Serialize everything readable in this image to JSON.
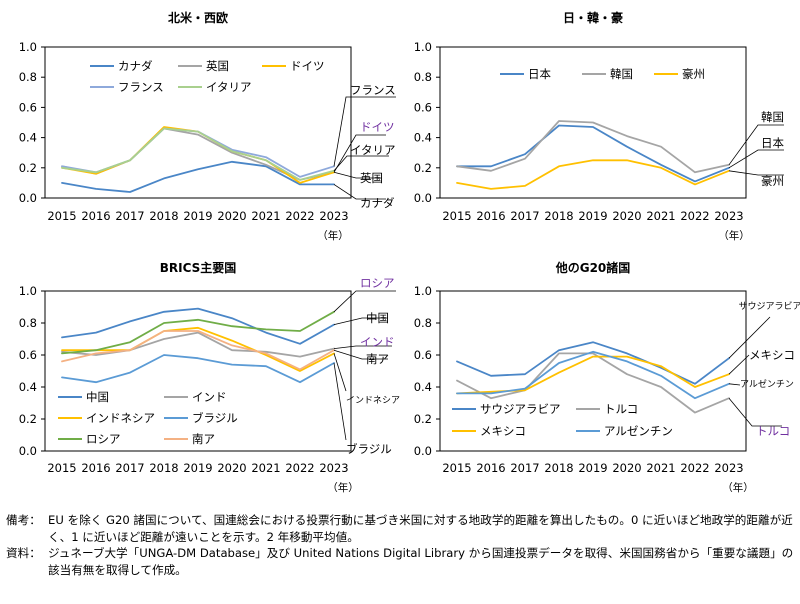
{
  "figure": {
    "year_unit": "（年）"
  },
  "chart_data": [
    {
      "type": "line",
      "title": "北米・西欧",
      "categories": [
        "2015",
        "2016",
        "2017",
        "2018",
        "2019",
        "2020",
        "2021",
        "2022",
        "2023"
      ],
      "ylim": [
        0,
        1.0
      ],
      "yticks": [
        "0.0",
        "0.2",
        "0.4",
        "0.6",
        "0.8",
        "1.0"
      ],
      "series": [
        {
          "name": "カナダ",
          "color": "#4a86c7",
          "values": [
            0.1,
            0.06,
            0.04,
            0.13,
            0.19,
            0.24,
            0.21,
            0.09,
            0.09
          ]
        },
        {
          "name": "英国",
          "color": "#a5a5a5",
          "values": [
            0.21,
            0.16,
            0.25,
            0.46,
            0.42,
            0.3,
            0.22,
            0.12,
            0.17
          ]
        },
        {
          "name": "ドイツ",
          "color": "#ffc000",
          "values": [
            0.2,
            0.16,
            0.25,
            0.47,
            0.44,
            0.31,
            0.25,
            0.1,
            0.17
          ]
        },
        {
          "name": "フランス",
          "color": "#8ea9db",
          "values": [
            0.21,
            0.17,
            0.25,
            0.46,
            0.44,
            0.32,
            0.27,
            0.14,
            0.21
          ]
        },
        {
          "name": "イタリア",
          "color": "#a9d08e",
          "values": [
            0.2,
            0.17,
            0.25,
            0.46,
            0.44,
            0.31,
            0.25,
            0.12,
            0.18
          ]
        }
      ],
      "end_labels": [
        {
          "series": "フランス",
          "text": "フランス",
          "color": "#000000"
        },
        {
          "series": "ドイツ",
          "text": "ドイツ",
          "color": "#7030a0"
        },
        {
          "series": "イタリア",
          "text": "イタリア",
          "color": "#000000"
        },
        {
          "series": "英国",
          "text": "英国",
          "color": "#000000"
        },
        {
          "series": "カナダ",
          "text": "カナダ",
          "color": "#000000"
        }
      ]
    },
    {
      "type": "line",
      "title": "日・韓・豪",
      "categories": [
        "2015",
        "2016",
        "2017",
        "2018",
        "2019",
        "2020",
        "2021",
        "2022",
        "2023"
      ],
      "ylim": [
        0,
        1.0
      ],
      "yticks": [
        "0.0",
        "0.2",
        "0.4",
        "0.6",
        "0.8",
        "1.0"
      ],
      "series": [
        {
          "name": "日本",
          "color": "#4a86c7",
          "values": [
            0.21,
            0.21,
            0.29,
            0.48,
            0.47,
            0.34,
            0.22,
            0.11,
            0.2
          ]
        },
        {
          "name": "韓国",
          "color": "#a5a5a5",
          "values": [
            0.21,
            0.18,
            0.26,
            0.51,
            0.5,
            0.41,
            0.34,
            0.17,
            0.22
          ]
        },
        {
          "name": "豪州",
          "color": "#ffc000",
          "values": [
            0.1,
            0.06,
            0.08,
            0.21,
            0.25,
            0.25,
            0.2,
            0.09,
            0.18
          ]
        }
      ],
      "end_labels": [
        {
          "series": "韓国",
          "text": "韓国",
          "color": "#000000"
        },
        {
          "series": "日本",
          "text": "日本",
          "color": "#000000"
        },
        {
          "series": "豪州",
          "text": "豪州",
          "color": "#000000"
        }
      ]
    },
    {
      "type": "line",
      "title": "BRICS主要国",
      "categories": [
        "2015",
        "2016",
        "2017",
        "2018",
        "2019",
        "2020",
        "2021",
        "2022",
        "2023"
      ],
      "ylim": [
        0,
        1.0
      ],
      "yticks": [
        "0.0",
        "0.2",
        "0.4",
        "0.6",
        "0.8",
        "1.0"
      ],
      "series": [
        {
          "name": "中国",
          "color": "#4a86c7",
          "values": [
            0.71,
            0.74,
            0.81,
            0.87,
            0.89,
            0.83,
            0.74,
            0.67,
            0.79
          ]
        },
        {
          "name": "インド",
          "color": "#a5a5a5",
          "values": [
            0.62,
            0.6,
            0.63,
            0.7,
            0.74,
            0.63,
            0.62,
            0.59,
            0.64
          ]
        },
        {
          "name": "インドネシア",
          "color": "#ffc000",
          "values": [
            0.63,
            0.63,
            0.63,
            0.75,
            0.77,
            0.69,
            0.6,
            0.5,
            0.61
          ]
        },
        {
          "name": "ブラジル",
          "color": "#5b9bd5",
          "values": [
            0.46,
            0.43,
            0.49,
            0.6,
            0.58,
            0.54,
            0.53,
            0.43,
            0.55
          ]
        },
        {
          "name": "ロシア",
          "color": "#70ad47",
          "values": [
            0.61,
            0.63,
            0.68,
            0.8,
            0.82,
            0.78,
            0.76,
            0.75,
            0.87
          ]
        },
        {
          "name": "南ア",
          "color": "#f4b183",
          "values": [
            0.56,
            0.61,
            0.63,
            0.75,
            0.75,
            0.66,
            0.61,
            0.51,
            0.63
          ]
        }
      ],
      "end_labels": [
        {
          "series": "ロシア",
          "text": "ロシア",
          "color": "#7030a0"
        },
        {
          "series": "中国",
          "text": "中国",
          "color": "#000000"
        },
        {
          "series": "インド",
          "text": "インド",
          "color": "#7030a0"
        },
        {
          "series": "南ア",
          "text": "南ア",
          "color": "#000000"
        },
        {
          "series": "インドネシア",
          "text": "インドネシア",
          "color": "#000000"
        },
        {
          "series": "ブラジル",
          "text": "ブラジル",
          "color": "#000000"
        }
      ]
    },
    {
      "type": "line",
      "title": "他のG20諸国",
      "categories": [
        "2015",
        "2016",
        "2017",
        "2018",
        "2019",
        "2020",
        "2021",
        "2022",
        "2023"
      ],
      "ylim": [
        0,
        1.0
      ],
      "yticks": [
        "0.0",
        "0.2",
        "0.4",
        "0.6",
        "0.8",
        "1.0"
      ],
      "series": [
        {
          "name": "サウジアラビア",
          "color": "#4a86c7",
          "values": [
            0.56,
            0.47,
            0.48,
            0.63,
            0.68,
            0.61,
            0.52,
            0.42,
            0.58
          ]
        },
        {
          "name": "トルコ",
          "color": "#a5a5a5",
          "values": [
            0.44,
            0.33,
            0.38,
            0.61,
            0.61,
            0.48,
            0.4,
            0.24,
            0.33
          ]
        },
        {
          "name": "メキシコ",
          "color": "#ffc000",
          "values": [
            0.36,
            0.37,
            0.38,
            0.49,
            0.59,
            0.59,
            0.53,
            0.4,
            0.48
          ]
        },
        {
          "name": "アルゼンチン",
          "color": "#5b9bd5",
          "values": [
            0.36,
            0.36,
            0.39,
            0.55,
            0.62,
            0.56,
            0.47,
            0.33,
            0.42
          ]
        }
      ],
      "end_labels": [
        {
          "series": "サウジアラビア",
          "text": "サウジアラビア",
          "color": "#000000"
        },
        {
          "series": "メキシコ",
          "text": "メキシコ",
          "color": "#000000"
        },
        {
          "series": "アルゼンチン",
          "text": "アルゼンチン",
          "color": "#000000"
        },
        {
          "series": "トルコ",
          "text": "トルコ",
          "color": "#7030a0"
        }
      ]
    }
  ],
  "notes": {
    "remarks_label": "備考：",
    "remarks_text": "EU を除く G20 諸国について、国連総会における投票行動に基づき米国に対する地政学的距離を算出したもの。0 に近いほど地政学的距離が近く、1 に近いほど距離が遠いことを示す。2 年移動平均値。",
    "source_label": "資料：",
    "source_text": "ジュネーブ大学「UNGA-DM Database」及び United Nations Digital Library から国連投票データを取得、米国国務省から「重要な議題」の該当有無を取得して作成。"
  }
}
